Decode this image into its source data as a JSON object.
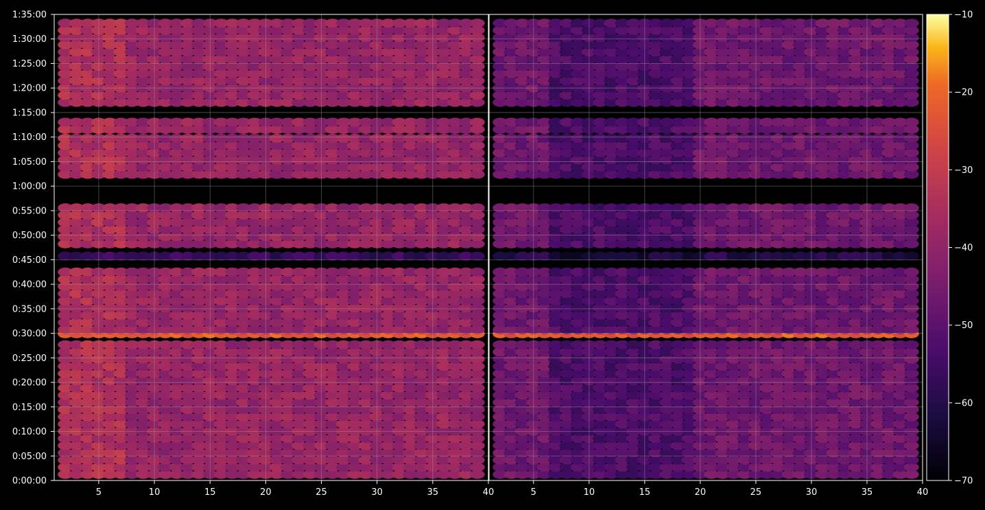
{
  "chart_data": {
    "type": "heatmap",
    "title": "",
    "xlabel": "",
    "ylabel": "",
    "panels": [
      {
        "name": "",
        "xlim": [
          1,
          40
        ],
        "x_ticks": [
          5,
          10,
          15,
          20,
          25,
          30,
          35,
          40
        ],
        "intensity_profile": "bright",
        "column_range": [
          2,
          39
        ]
      },
      {
        "name": "",
        "xlim": [
          1,
          40
        ],
        "x_ticks": [
          5,
          10,
          15,
          20,
          25,
          30,
          35,
          40
        ],
        "intensity_profile": "dim",
        "column_range": [
          2,
          39
        ]
      }
    ],
    "ylim_seconds": [
      0,
      5700
    ],
    "y_tick_labels": [
      "0:00:00",
      "0:05:00",
      "0:10:00",
      "0:15:00",
      "0:20:00",
      "0:25:00",
      "0:30:00",
      "0:35:00",
      "0:40:00",
      "0:45:00",
      "0:50:00",
      "0:55:00",
      "1:00:00",
      "1:05:00",
      "1:10:00",
      "1:15:00",
      "1:20:00",
      "1:25:00",
      "1:30:00",
      "1:35:00"
    ],
    "y_tick_seconds": [
      0,
      300,
      600,
      900,
      1200,
      1500,
      1800,
      2100,
      2400,
      2700,
      3000,
      3300,
      3600,
      3900,
      4200,
      4500,
      4800,
      5100,
      5400,
      5700
    ],
    "colorbar": {
      "colormap": "inferno",
      "range": [
        -70,
        -10
      ],
      "ticks": [
        -10,
        -20,
        -30,
        -40,
        -50,
        -60,
        -70
      ],
      "tick_labels": [
        "−10",
        "−20",
        "−30",
        "−40",
        "−50",
        "−60",
        "−70"
      ]
    },
    "data_blocks_seconds": [
      {
        "start": 30,
        "end": 1740,
        "level": "medium"
      },
      {
        "start": 1750,
        "end": 1810,
        "level": "high"
      },
      {
        "start": 1620,
        "end": 1660,
        "level": "peak"
      },
      {
        "start": 1800,
        "end": 2600,
        "level": "medium"
      },
      {
        "start": 2700,
        "end": 2820,
        "level": "low"
      },
      {
        "start": 2850,
        "end": 3340,
        "level": "medium"
      },
      {
        "start": 3400,
        "end": 3440,
        "level": "medium"
      },
      {
        "start": 3700,
        "end": 4200,
        "level": "medium"
      },
      {
        "start": 4250,
        "end": 4450,
        "level": "medium"
      },
      {
        "start": 4580,
        "end": 5640,
        "level": "medium"
      }
    ],
    "gap_bands_seconds": [
      [
        600,
        620
      ],
      [
        1000,
        1020
      ],
      [
        1740,
        1760
      ],
      [
        2600,
        2700
      ],
      [
        2820,
        2850
      ],
      [
        3340,
        3400
      ],
      [
        3440,
        3700
      ],
      [
        4200,
        4250
      ],
      [
        4450,
        4580
      ]
    ],
    "grid": true,
    "legend": "none"
  },
  "colors": {
    "background": "#000000",
    "grid": "#9a9a9a",
    "text": "#ffffff"
  }
}
